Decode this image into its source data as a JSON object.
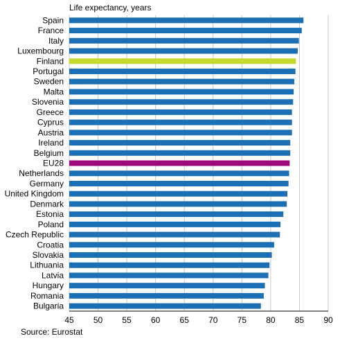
{
  "chart_data": {
    "type": "bar",
    "orientation": "horizontal",
    "title": "Life expectancy, years",
    "source": "Source: Eurostat",
    "categories": [
      "Spain",
      "France",
      "Italy",
      "Luxembourg",
      "Finland",
      "Portugal",
      "Sweden",
      "Malta",
      "Slovenia",
      "Greece",
      "Cyprus",
      "Austria",
      "Ireland",
      "Belgium",
      "EU28",
      "Netherlands",
      "Germany",
      "United Kingdom",
      "Denmark",
      "Estonia",
      "Poland",
      "Czech Republic",
      "Croatia",
      "Slovakia",
      "Lithuania",
      "Latvia",
      "Hungary",
      "Romania",
      "Bulgaria"
    ],
    "values": [
      85.7,
      85.4,
      84.9,
      84.7,
      84.4,
      84.3,
      84.1,
      84.0,
      83.9,
      83.7,
      83.7,
      83.7,
      83.4,
      83.4,
      83.3,
      83.2,
      83.1,
      82.9,
      82.8,
      82.2,
      81.7,
      81.6,
      80.6,
      80.2,
      79.8,
      79.6,
      79.0,
      78.8,
      78.3
    ],
    "xlim": [
      45,
      90
    ],
    "xticks": [
      "45",
      "50",
      "55",
      "60",
      "65",
      "70",
      "75",
      "80",
      "85",
      "90"
    ],
    "grid": "vertical",
    "colors": {
      "default": "#1a6fb5",
      "Finland": "#c4d82e",
      "EU28": "#9c0a7c",
      "grid": "#c8c8c8"
    }
  }
}
